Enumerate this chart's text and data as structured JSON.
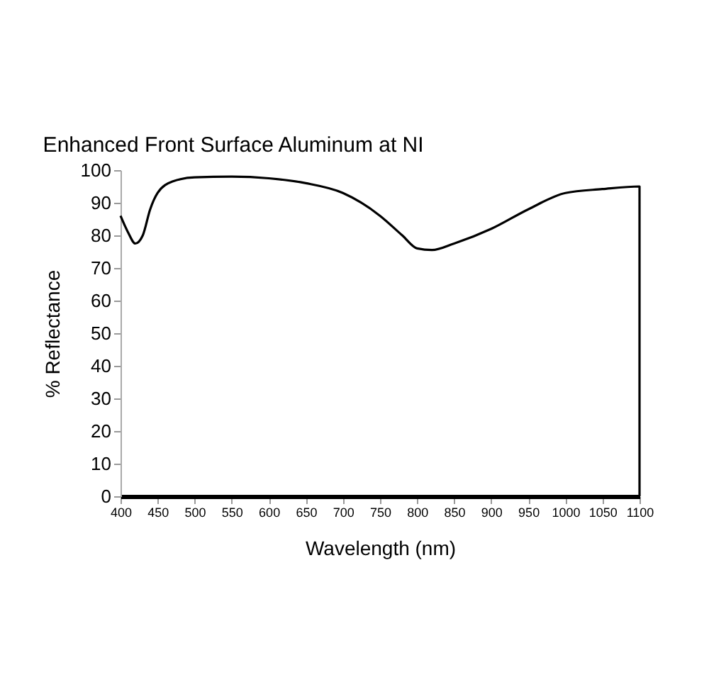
{
  "chart_data": {
    "type": "line",
    "title": "Enhanced Front Surface  Aluminum at NI",
    "xlabel": "Wavelength (nm)",
    "ylabel": "% Reflectance",
    "x": [
      400,
      410,
      420,
      430,
      440,
      450,
      470,
      500,
      550,
      600,
      650,
      700,
      750,
      780,
      800,
      820,
      850,
      900,
      950,
      1000,
      1050,
      1100,
      1100
    ],
    "series": [
      {
        "color": "#000000",
        "values": [
          86,
          81,
          77.5,
          80,
          88,
          93,
          96.5,
          97.8,
          98,
          97.5,
          96,
          93,
          86,
          80,
          76,
          75.5,
          77.5,
          82,
          88,
          93,
          94.2,
          95,
          0
        ]
      }
    ],
    "xlim": [
      400,
      1100
    ],
    "xticks": [
      400,
      450,
      500,
      550,
      600,
      650,
      700,
      750,
      800,
      850,
      900,
      950,
      1000,
      1050,
      1100
    ],
    "ylim": [
      0,
      100
    ],
    "yticks": [
      0,
      10,
      20,
      30,
      40,
      50,
      60,
      70,
      80,
      90,
      100
    ],
    "grid": false,
    "marker": "none",
    "line_style": "solid"
  }
}
